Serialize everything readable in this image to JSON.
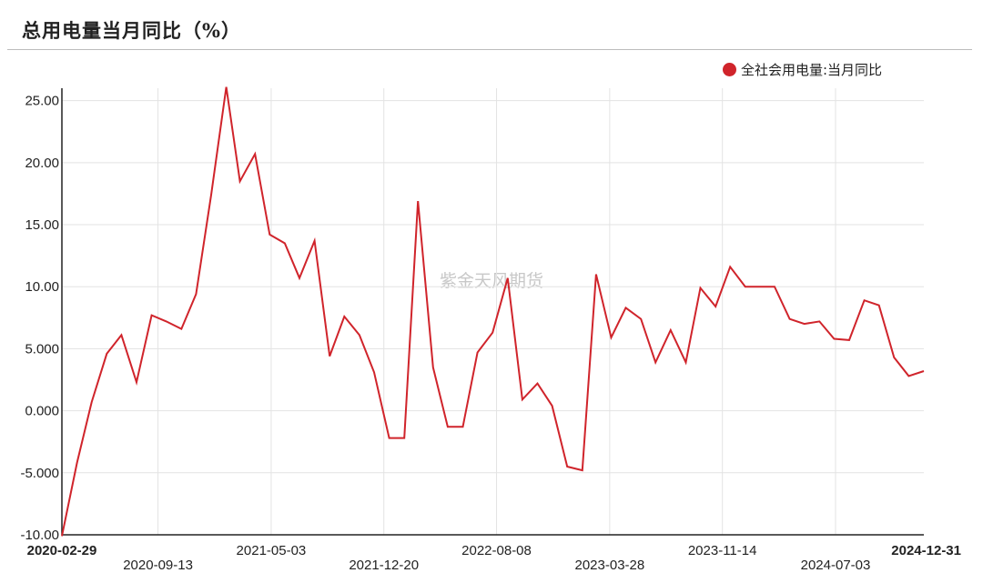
{
  "title": "总用电量当月同比（%）",
  "watermark": "紫金天风期货",
  "colors": {
    "series": "#d0242b",
    "grid": "#e3e3e3",
    "axis": "#222222"
  },
  "chart_data": {
    "type": "line",
    "legend_position": "top-right",
    "grid": true,
    "ylim": [
      -10,
      26
    ],
    "y_ticks": [
      25,
      20,
      15,
      10,
      5,
      0,
      -5,
      -10
    ],
    "y_tick_labels": [
      "25.00",
      "20.00",
      "15.00",
      "10.00",
      "5.000",
      "0.000",
      "-5.000",
      "-10.00"
    ],
    "x_ticks": [
      {
        "date": "2020-02-29",
        "bold": true
      },
      {
        "date": "2020-09-13",
        "bold": false
      },
      {
        "date": "2021-05-03",
        "bold": false
      },
      {
        "date": "2021-12-20",
        "bold": false
      },
      {
        "date": "2022-08-08",
        "bold": false
      },
      {
        "date": "2023-03-28",
        "bold": false
      },
      {
        "date": "2023-11-14",
        "bold": false
      },
      {
        "date": "2024-07-03",
        "bold": false
      },
      {
        "date": "2024-12-31",
        "bold": true
      }
    ],
    "series": [
      {
        "name": "全社会用电量:当月同比",
        "points": [
          [
            "2020-02-29",
            -10.1
          ],
          [
            "2020-03-31",
            -4.2
          ],
          [
            "2020-04-30",
            0.7
          ],
          [
            "2020-05-31",
            4.6
          ],
          [
            "2020-06-30",
            6.1
          ],
          [
            "2020-07-31",
            2.3
          ],
          [
            "2020-08-31",
            7.7
          ],
          [
            "2020-09-30",
            7.2
          ],
          [
            "2020-10-31",
            6.6
          ],
          [
            "2020-11-30",
            9.4
          ],
          [
            "2020-12-31",
            17.4
          ],
          [
            "2021-01-31",
            26.1
          ],
          [
            "2021-02-28",
            18.5
          ],
          [
            "2021-03-31",
            20.7
          ],
          [
            "2021-04-30",
            14.2
          ],
          [
            "2021-05-31",
            13.5
          ],
          [
            "2021-06-30",
            10.7
          ],
          [
            "2021-07-31",
            13.7
          ],
          [
            "2021-08-31",
            4.4
          ],
          [
            "2021-09-30",
            7.6
          ],
          [
            "2021-10-31",
            6.1
          ],
          [
            "2021-11-30",
            3.1
          ],
          [
            "2021-12-31",
            -2.2
          ],
          [
            "2022-01-31",
            -2.2
          ],
          [
            "2022-02-28",
            16.9
          ],
          [
            "2022-03-31",
            3.5
          ],
          [
            "2022-04-30",
            -1.3
          ],
          [
            "2022-05-31",
            -1.3
          ],
          [
            "2022-06-30",
            4.7
          ],
          [
            "2022-07-31",
            6.3
          ],
          [
            "2022-08-31",
            10.7
          ],
          [
            "2022-09-30",
            0.9
          ],
          [
            "2022-10-31",
            2.2
          ],
          [
            "2022-11-30",
            0.4
          ],
          [
            "2022-12-31",
            -4.5
          ],
          [
            "2023-01-31",
            -4.8
          ],
          [
            "2023-02-28",
            11.0
          ],
          [
            "2023-03-31",
            5.9
          ],
          [
            "2023-04-30",
            8.3
          ],
          [
            "2023-05-31",
            7.4
          ],
          [
            "2023-06-30",
            3.9
          ],
          [
            "2023-07-31",
            6.5
          ],
          [
            "2023-08-31",
            3.9
          ],
          [
            "2023-09-30",
            9.9
          ],
          [
            "2023-10-31",
            8.4
          ],
          [
            "2023-11-30",
            11.6
          ],
          [
            "2023-12-31",
            10.0
          ],
          [
            "2024-01-31",
            10.0
          ],
          [
            "2024-02-29",
            10.0
          ],
          [
            "2024-03-31",
            7.4
          ],
          [
            "2024-04-30",
            7.0
          ],
          [
            "2024-05-31",
            7.2
          ],
          [
            "2024-06-30",
            5.8
          ],
          [
            "2024-07-31",
            5.7
          ],
          [
            "2024-08-31",
            8.9
          ],
          [
            "2024-09-30",
            8.5
          ],
          [
            "2024-10-31",
            4.3
          ],
          [
            "2024-11-30",
            2.8
          ],
          [
            "2024-12-31",
            3.2
          ]
        ]
      }
    ]
  }
}
